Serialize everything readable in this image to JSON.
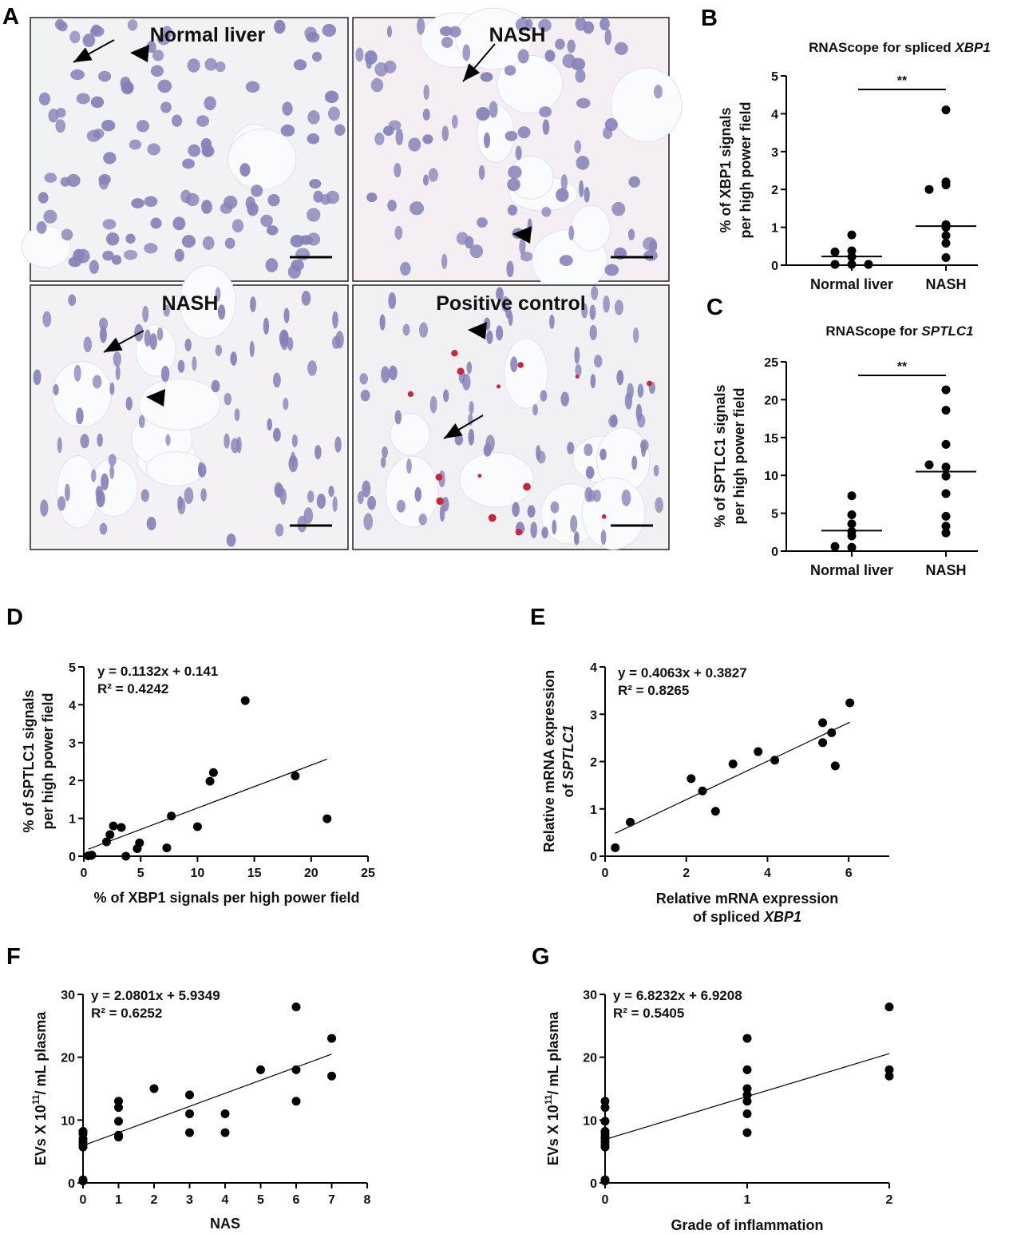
{
  "panel_letters": [
    "A",
    "B",
    "C",
    "D",
    "E",
    "F",
    "G"
  ],
  "micrographs": [
    {
      "label": "Normal liver",
      "tint": "#f1f2f4"
    },
    {
      "label": "NASH",
      "tint": "#f3eff2"
    },
    {
      "label": "NASH",
      "tint": "#f4f1f4"
    },
    {
      "label": "Positive control",
      "tint": "#f1f1f4"
    }
  ],
  "colors": {
    "nucleus": "#8682b8",
    "signal_red": "#c8283c",
    "ink": "#000000"
  },
  "chart_data": [
    {
      "id": "B",
      "type": "scatter",
      "title_prefix": "RNAScope for spliced ",
      "title_italic": "XBP1",
      "ylabel": [
        "% of XBP1 signals",
        "per high power field"
      ],
      "categories": [
        "Normal liver",
        "NASH"
      ],
      "ylim": [
        0,
        5
      ],
      "yticks": [
        0,
        1,
        2,
        3,
        4,
        5
      ],
      "series": [
        {
          "name": "Normal liver",
          "values": [
            0.8,
            0.38,
            0.35,
            0.22,
            0.02,
            0.02,
            0.02
          ],
          "median": 0.23
        },
        {
          "name": "NASH",
          "values": [
            4.1,
            2.2,
            2.12,
            2.0,
            1.07,
            1.0,
            0.78,
            0.58,
            0.2
          ],
          "median": 1.03
        }
      ],
      "significance": "**"
    },
    {
      "id": "C",
      "type": "scatter",
      "title_prefix": "RNAScope for ",
      "title_italic": "SPTLC1",
      "ylabel": [
        "% of SPTLC1 signals",
        "per high power field"
      ],
      "categories": [
        "Normal liver",
        "NASH"
      ],
      "ylim": [
        0,
        25
      ],
      "yticks": [
        0,
        5,
        10,
        15,
        20,
        25
      ],
      "series": [
        {
          "name": "Normal liver",
          "values": [
            7.3,
            4.8,
            3.6,
            2.6,
            2.0,
            0.5,
            0.6
          ],
          "median": 2.7
        },
        {
          "name": "NASH",
          "values": [
            21.3,
            18.6,
            14.1,
            11.1,
            11.4,
            9.9,
            7.6,
            4.6,
            3.3,
            2.4
          ],
          "median": 10.5
        }
      ],
      "significance": "**"
    },
    {
      "id": "D",
      "type": "scatter",
      "equation": "y = 0.1132x + 0.141",
      "r2": "R² = 0.4242",
      "xlabel": [
        "% of XBP1 signals per high power field"
      ],
      "ylabel": [
        "% of SPTLC1 signals",
        "per high power field"
      ],
      "xlim": [
        0,
        25
      ],
      "xticks": [
        0,
        5,
        10,
        15,
        20,
        25
      ],
      "ylim": [
        0,
        5
      ],
      "yticks": [
        0,
        1,
        2,
        3,
        4,
        5
      ],
      "fit": {
        "slope": 0.1132,
        "intercept": 0.141,
        "xrange": [
          0.4,
          21.4
        ]
      },
      "points": [
        [
          0.4,
          0.01
        ],
        [
          0.6,
          0.02
        ],
        [
          0.7,
          0.03
        ],
        [
          2.0,
          0.38
        ],
        [
          2.3,
          0.57
        ],
        [
          2.6,
          0.8
        ],
        [
          3.3,
          0.76
        ],
        [
          3.7,
          0
        ],
        [
          4.7,
          0.2
        ],
        [
          4.9,
          0.35
        ],
        [
          7.3,
          0.22
        ],
        [
          7.7,
          1.06
        ],
        [
          10,
          0.78
        ],
        [
          11.1,
          1.98
        ],
        [
          11.4,
          2.21
        ],
        [
          14.2,
          4.11
        ],
        [
          18.6,
          2.12
        ],
        [
          21.4,
          0.99
        ]
      ]
    },
    {
      "id": "E",
      "type": "scatter",
      "equation": "y = 0.4063x + 0.3827",
      "r2": "R² = 0.8265",
      "xlabel": [
        "Relative mRNA expression",
        "of spliced ",
        "XBP1"
      ],
      "ylabel": [
        "Relative mRNA expression",
        "of ",
        "SPTLC1"
      ],
      "xlim": [
        0,
        7
      ],
      "xticks": [
        0,
        2,
        4,
        6
      ],
      "ylim": [
        0,
        4
      ],
      "yticks": [
        0,
        1,
        2,
        3,
        4
      ],
      "fit": {
        "slope": 0.4063,
        "intercept": 0.3827,
        "xrange": [
          0.25,
          6.03
        ]
      },
      "points": [
        [
          0.25,
          0.18
        ],
        [
          0.62,
          0.72
        ],
        [
          2.12,
          1.64
        ],
        [
          2.4,
          1.38
        ],
        [
          2.72,
          0.95
        ],
        [
          3.15,
          1.95
        ],
        [
          3.77,
          2.21
        ],
        [
          4.18,
          2.03
        ],
        [
          5.36,
          2.82
        ],
        [
          5.36,
          2.4
        ],
        [
          5.58,
          2.61
        ],
        [
          5.67,
          1.91
        ],
        [
          6.03,
          3.24
        ]
      ]
    },
    {
      "id": "F",
      "type": "scatter",
      "equation": "y = 2.0801x + 5.9349",
      "r2": "R² = 0.6252",
      "xlabel": [
        "NAS"
      ],
      "ylabel": [
        "EVs X 10",
        "11",
        "/ mL plasma"
      ],
      "xlim": [
        0,
        8
      ],
      "xticks": [
        0,
        1,
        2,
        3,
        4,
        5,
        6,
        7,
        8
      ],
      "ylim": [
        0,
        30
      ],
      "yticks": [
        0,
        10,
        20,
        30
      ],
      "fit": {
        "slope": 2.0801,
        "intercept": 5.9349,
        "xrange": [
          0,
          7
        ]
      },
      "points": [
        [
          0,
          8.2
        ],
        [
          0,
          7.8
        ],
        [
          0,
          7
        ],
        [
          0,
          6.5
        ],
        [
          0,
          6
        ],
        [
          0,
          5.7
        ],
        [
          0,
          0.5
        ],
        [
          0,
          0.3
        ],
        [
          1,
          13
        ],
        [
          1,
          12
        ],
        [
          1,
          9.8
        ],
        [
          1,
          7.6
        ],
        [
          1,
          7.3
        ],
        [
          2,
          15
        ],
        [
          3,
          14
        ],
        [
          3,
          11
        ],
        [
          3,
          8
        ],
        [
          4,
          11
        ],
        [
          4,
          8
        ],
        [
          5,
          18
        ],
        [
          6,
          28
        ],
        [
          6,
          18
        ],
        [
          6,
          13
        ],
        [
          7,
          23
        ],
        [
          7,
          17
        ]
      ]
    },
    {
      "id": "G",
      "type": "scatter",
      "equation": "y = 6.8232x + 6.9208",
      "r2": "R² = 0.5405",
      "xlabel": [
        "Grade of inflammation"
      ],
      "ylabel": [
        "EVs X 10",
        "11",
        "/ mL plasma"
      ],
      "xlim": [
        0,
        2
      ],
      "xticks": [
        0,
        1,
        2
      ],
      "ylim": [
        0,
        30
      ],
      "yticks": [
        0,
        10,
        20,
        30
      ],
      "fit": {
        "slope": 6.8232,
        "intercept": 6.9208,
        "xrange": [
          0,
          2
        ]
      },
      "points": [
        [
          0,
          13
        ],
        [
          0,
          12
        ],
        [
          0,
          9.8
        ],
        [
          0,
          8.2
        ],
        [
          0,
          7.8
        ],
        [
          0,
          7.3
        ],
        [
          0,
          7
        ],
        [
          0,
          6.5
        ],
        [
          0,
          6
        ],
        [
          0,
          5.7
        ],
        [
          0,
          0.5
        ],
        [
          0,
          0.3
        ],
        [
          1,
          23
        ],
        [
          1,
          18
        ],
        [
          1,
          15
        ],
        [
          1,
          14
        ],
        [
          1,
          13
        ],
        [
          1,
          11
        ],
        [
          1,
          8
        ],
        [
          2,
          28
        ],
        [
          2,
          18
        ],
        [
          2,
          17
        ]
      ]
    }
  ]
}
